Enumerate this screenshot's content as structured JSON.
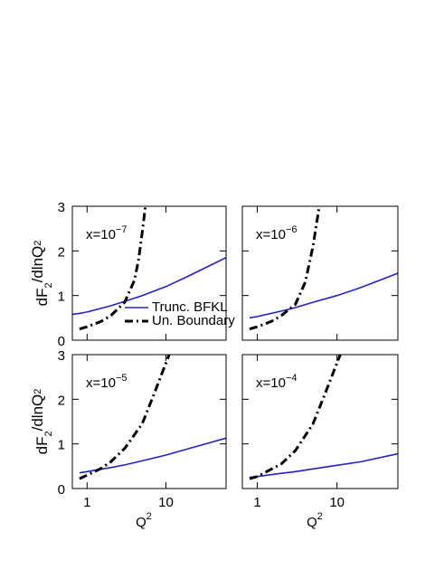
{
  "chart_data": [
    {
      "type": "line",
      "annotation_parts": [
        "x=10",
        "−7"
      ],
      "y_label_parts": [
        "dF",
        "2",
        "/dlnQ",
        "2"
      ],
      "xlim": [
        0.65,
        58
      ],
      "xticks": [
        1,
        10
      ],
      "ylim": [
        0,
        3
      ],
      "yticks": [
        0,
        1,
        2,
        3
      ],
      "log_x": true,
      "legend": "lower right",
      "series": [
        {
          "name": "Trunc. BFKL",
          "color": "#2020d0",
          "style": "solid",
          "x": [
            0.65,
            0.8,
            1,
            2,
            3,
            5,
            10,
            20,
            58
          ],
          "values": [
            0.58,
            0.6,
            0.63,
            0.77,
            0.87,
            1.0,
            1.2,
            1.45,
            1.85
          ]
        },
        {
          "name": "Un. Boundary",
          "color": "#000000",
          "style": "dashdot",
          "x": [
            0.8,
            1,
            1.5,
            2,
            3,
            4,
            4.5,
            5,
            5.5
          ],
          "values": [
            0.25,
            0.3,
            0.42,
            0.55,
            0.85,
            1.35,
            1.8,
            2.4,
            3.0
          ]
        }
      ]
    },
    {
      "type": "line",
      "annotation_parts": [
        "x=10",
        "−6"
      ],
      "xlim": [
        0.65,
        58
      ],
      "xticks": [
        1,
        10
      ],
      "ylim": [
        0,
        3
      ],
      "yticks": [
        0,
        1,
        2,
        3
      ],
      "log_x": true,
      "series": [
        {
          "name": "Trunc. BFKL",
          "color": "#2020d0",
          "style": "solid",
          "x": [
            0.8,
            1,
            2,
            3,
            5,
            10,
            20,
            58
          ],
          "values": [
            0.5,
            0.53,
            0.65,
            0.73,
            0.85,
            1.0,
            1.18,
            1.5
          ]
        },
        {
          "name": "Un. Boundary",
          "color": "#000000",
          "style": "dashdot",
          "x": [
            0.8,
            1,
            1.5,
            2,
            3,
            4,
            5,
            6
          ],
          "values": [
            0.25,
            0.3,
            0.42,
            0.55,
            0.8,
            1.3,
            2.1,
            3.0
          ]
        }
      ]
    },
    {
      "type": "line",
      "annotation_parts": [
        "x=10",
        "−5"
      ],
      "y_label_parts": [
        "dF",
        "2",
        "/dlnQ",
        "2"
      ],
      "x_label_parts": [
        "Q",
        "2"
      ],
      "xlim": [
        0.65,
        58
      ],
      "xticks": [
        1,
        10
      ],
      "ylim": [
        0,
        3
      ],
      "yticks": [
        0,
        1,
        2,
        3
      ],
      "log_x": true,
      "series": [
        {
          "name": "Trunc. BFKL",
          "color": "#2020d0",
          "style": "solid",
          "x": [
            0.8,
            1,
            2,
            3,
            5,
            10,
            20,
            58
          ],
          "values": [
            0.35,
            0.38,
            0.47,
            0.53,
            0.62,
            0.75,
            0.9,
            1.13
          ]
        },
        {
          "name": "Un. Boundary",
          "color": "#000000",
          "style": "dashdot",
          "x": [
            0.8,
            1,
            1.5,
            2,
            3,
            5,
            7,
            9,
            11
          ],
          "values": [
            0.22,
            0.3,
            0.45,
            0.6,
            0.9,
            1.45,
            2.1,
            2.6,
            3.0
          ]
        }
      ]
    },
    {
      "type": "line",
      "annotation_parts": [
        "x=10",
        "−4"
      ],
      "x_label_parts": [
        "Q",
        "2"
      ],
      "xlim": [
        0.65,
        58
      ],
      "xticks": [
        1,
        10
      ],
      "ylim": [
        0,
        3
      ],
      "yticks": [
        0,
        1,
        2,
        3
      ],
      "log_x": true,
      "series": [
        {
          "name": "Trunc. BFKL",
          "color": "#2020d0",
          "style": "solid",
          "x": [
            0.8,
            1,
            2,
            3,
            5,
            10,
            20,
            58
          ],
          "values": [
            0.25,
            0.27,
            0.34,
            0.38,
            0.44,
            0.52,
            0.6,
            0.78
          ]
        },
        {
          "name": "Un. Boundary",
          "color": "#000000",
          "style": "dashdot",
          "x": [
            0.8,
            1,
            2,
            3,
            5,
            7,
            9,
            11
          ],
          "values": [
            0.22,
            0.27,
            0.55,
            0.85,
            1.45,
            2.1,
            2.6,
            3.0
          ]
        }
      ]
    }
  ]
}
